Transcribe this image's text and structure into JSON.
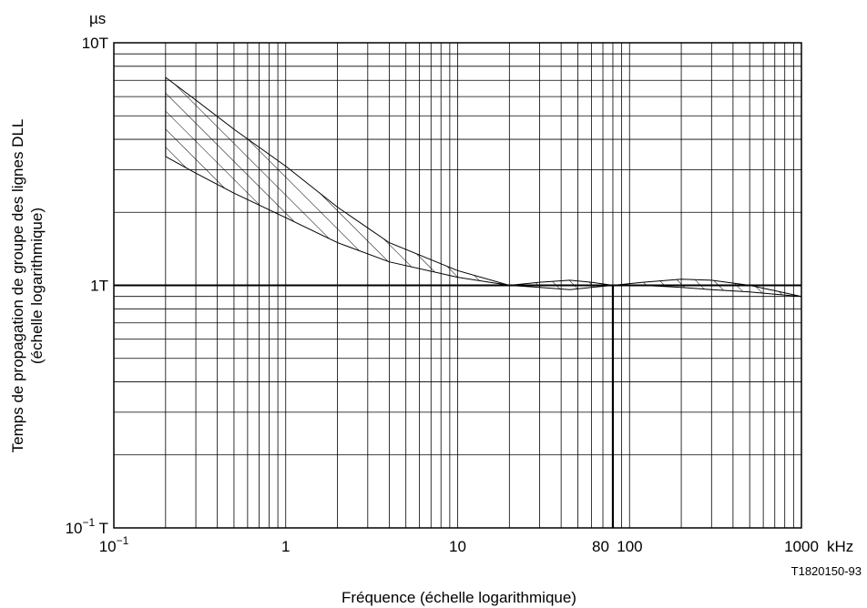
{
  "chart_data": {
    "type": "area",
    "title": "",
    "xlabel": "Fréquence (échelle logarithmique)",
    "ylabel_line1": "Temps de propagation de groupe des lignes DLL",
    "ylabel_line2": "(échelle logarithmique)",
    "x_unit": "kHz",
    "y_unit": "µs",
    "figure_id": "T1820150-93",
    "x_scale": "log",
    "y_scale": "log",
    "xlim": [
      0.1,
      1000
    ],
    "ylim": [
      0.1,
      10
    ],
    "grid": true,
    "x_ticks": [
      {
        "value": 0.1,
        "label": "10",
        "sup": "−1"
      },
      {
        "value": 1,
        "label": "1",
        "sup": ""
      },
      {
        "value": 10,
        "label": "10",
        "sup": ""
      },
      {
        "value": 80,
        "label": "80",
        "sup": ""
      },
      {
        "value": 100,
        "label": "100",
        "sup": ""
      },
      {
        "value": 1000,
        "label": "1000",
        "sup": ""
      }
    ],
    "y_ticks": [
      {
        "value": 10,
        "label": "10T",
        "sup": ""
      },
      {
        "value": 1,
        "label": "1T",
        "sup": ""
      },
      {
        "value": 0.1,
        "label": "10",
        "sup": "−1",
        "suffix": " T"
      }
    ],
    "reference_lines": [
      {
        "orientation": "horizontal",
        "value": 1
      },
      {
        "orientation": "vertical",
        "value": 80
      }
    ],
    "band_upper": [
      [
        0.2,
        7.2
      ],
      [
        0.3,
        5.8
      ],
      [
        0.5,
        4.4
      ],
      [
        1,
        3.1
      ],
      [
        2,
        2.1
      ],
      [
        4,
        1.5
      ],
      [
        10,
        1.15
      ],
      [
        20,
        1.0
      ],
      [
        30,
        1.03
      ],
      [
        45,
        1.05
      ],
      [
        60,
        1.03
      ],
      [
        80,
        1.0
      ],
      [
        120,
        1.03
      ],
      [
        200,
        1.06
      ],
      [
        300,
        1.05
      ],
      [
        500,
        1.0
      ],
      [
        700,
        0.95
      ],
      [
        1000,
        0.9
      ]
    ],
    "band_lower": [
      [
        0.2,
        3.4
      ],
      [
        0.3,
        2.9
      ],
      [
        0.5,
        2.4
      ],
      [
        1,
        1.9
      ],
      [
        2,
        1.5
      ],
      [
        4,
        1.25
      ],
      [
        10,
        1.08
      ],
      [
        20,
        1.0
      ],
      [
        30,
        0.98
      ],
      [
        45,
        0.96
      ],
      [
        60,
        0.98
      ],
      [
        80,
        1.0
      ],
      [
        120,
        1.0
      ],
      [
        200,
        0.98
      ],
      [
        300,
        0.96
      ],
      [
        500,
        0.94
      ],
      [
        700,
        0.92
      ],
      [
        1000,
        0.9
      ]
    ]
  }
}
